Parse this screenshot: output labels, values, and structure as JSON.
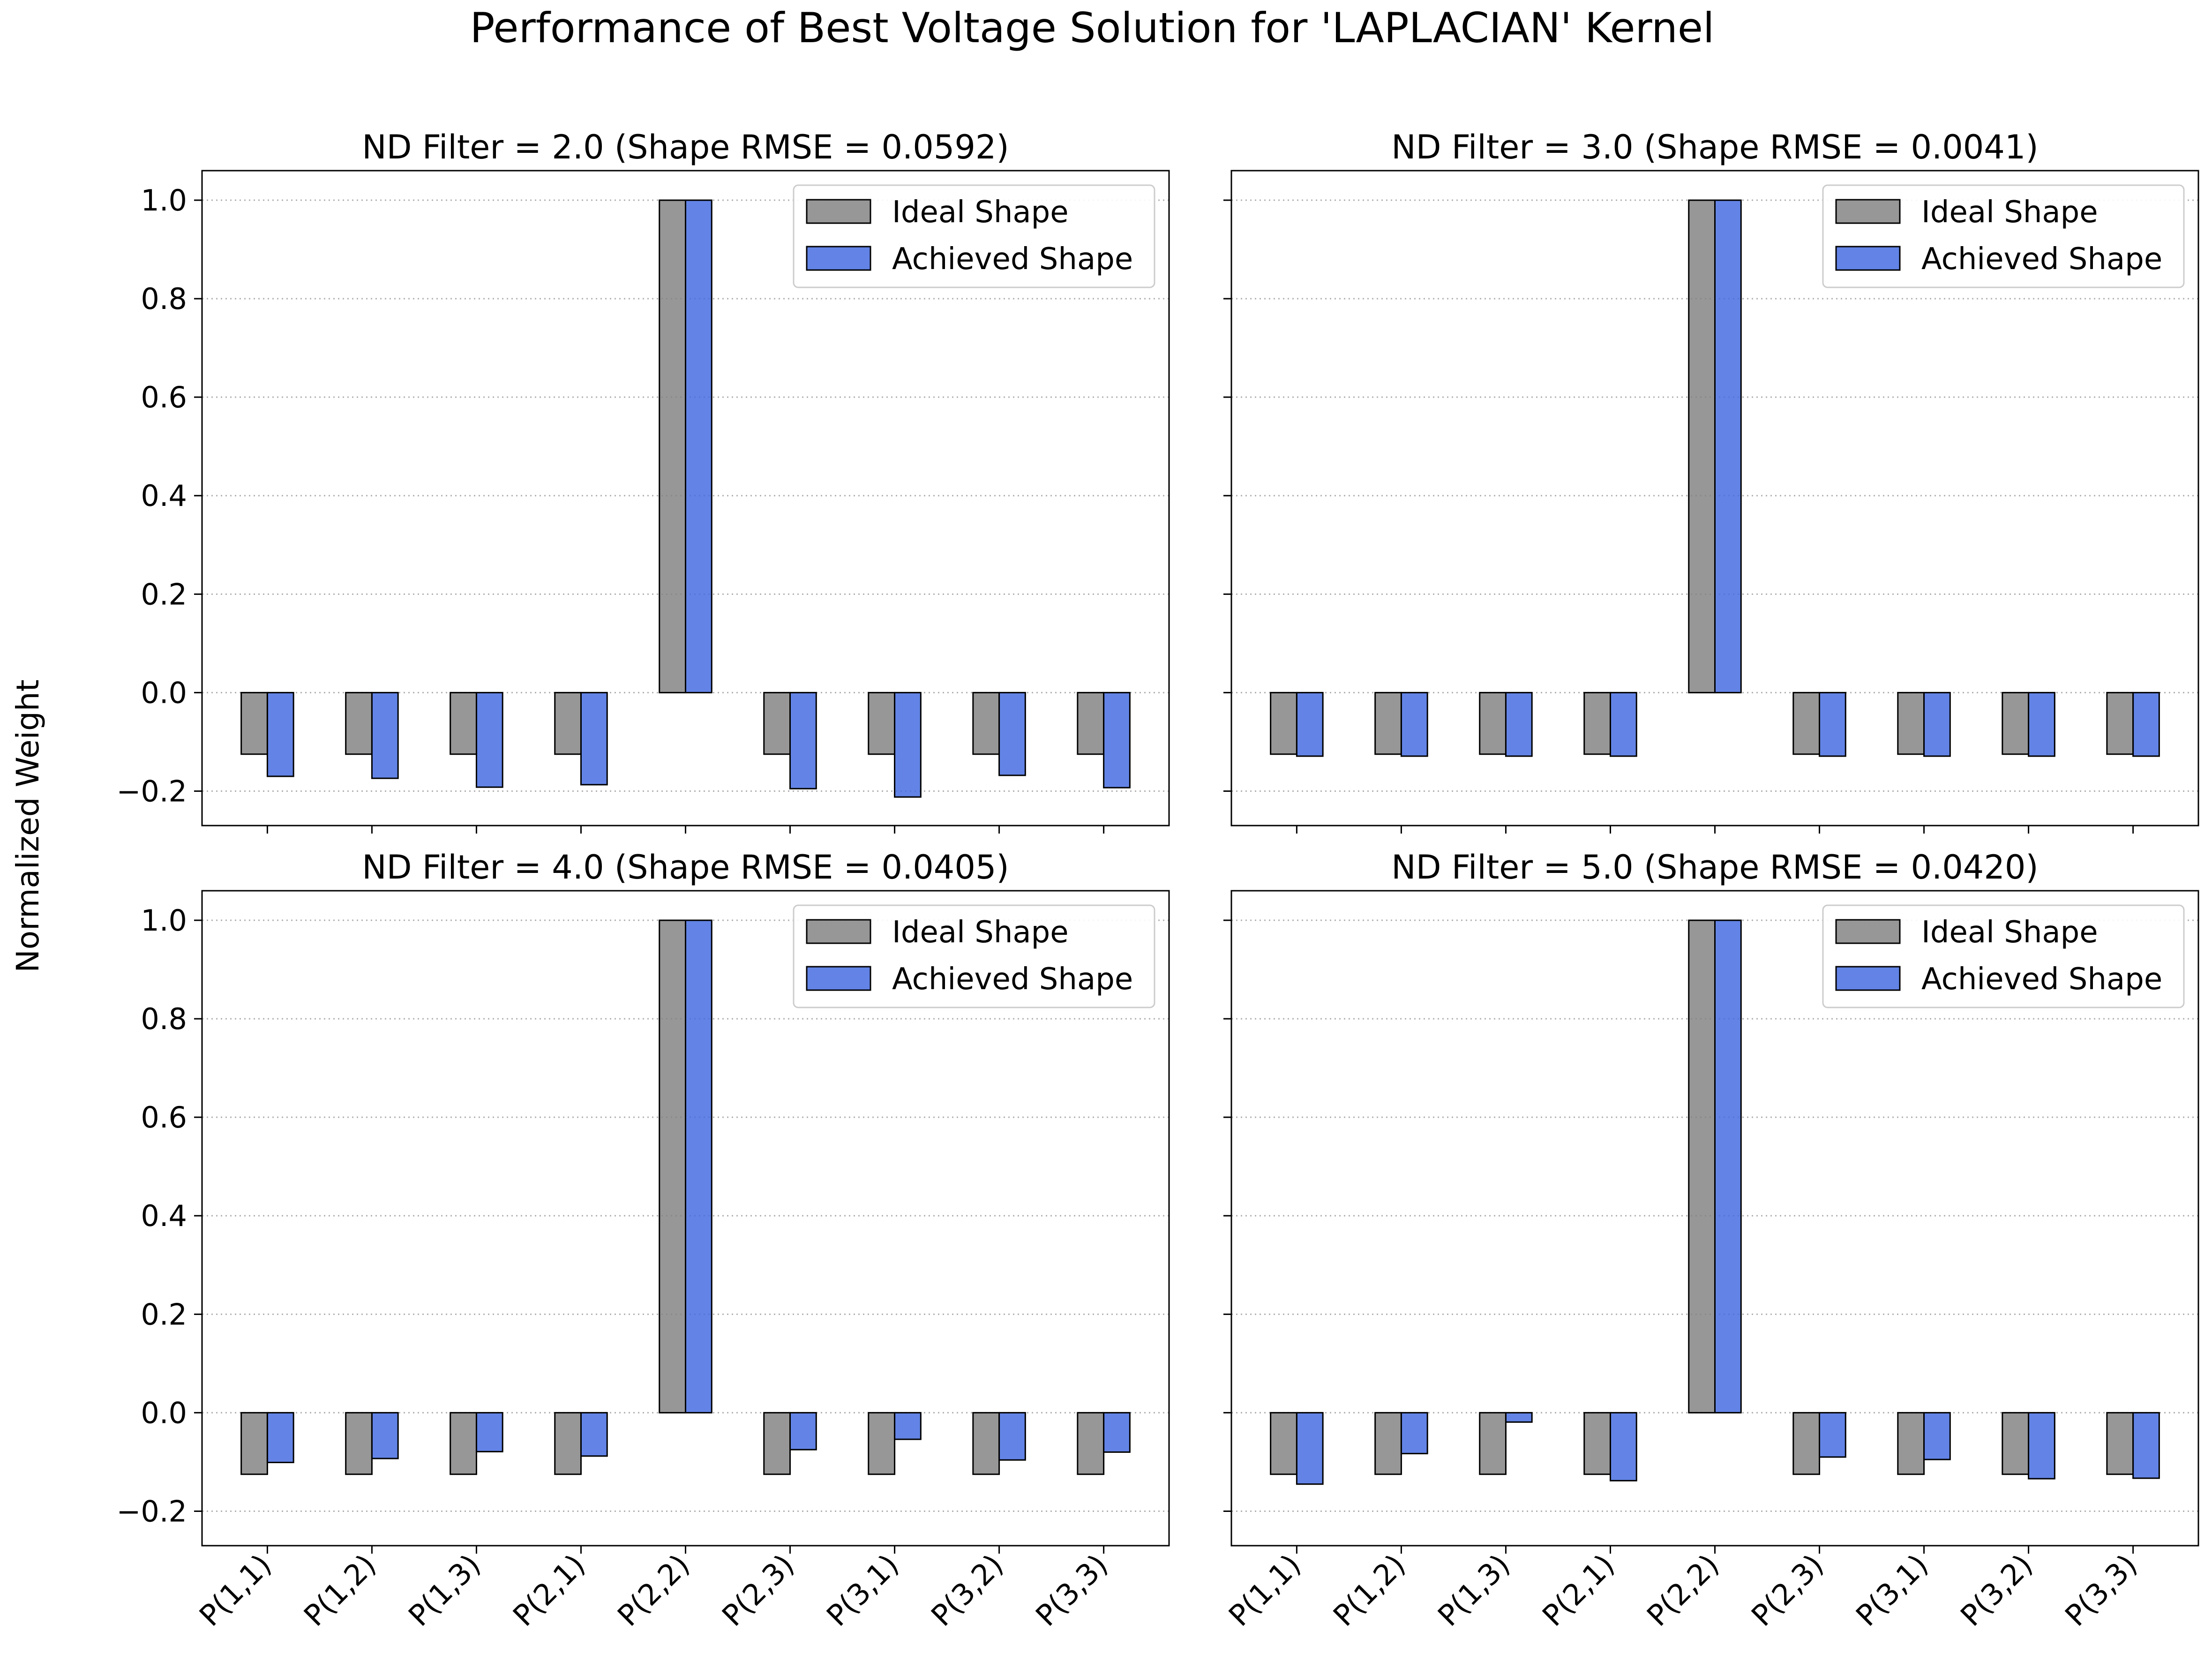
{
  "figure": {
    "title": "Performance of Best Voltage Solution for 'LAPLACIAN' Kernel",
    "ylabel": "Normalized Weight"
  },
  "chart_data": [
    {
      "type": "bar",
      "title": "ND Filter = 2.0 (Shape RMSE = 0.0592)",
      "categories": [
        "P(1,1)",
        "P(1,2)",
        "P(1,3)",
        "P(2,1)",
        "P(2,2)",
        "P(2,3)",
        "P(3,1)",
        "P(3,2)",
        "P(3,3)"
      ],
      "series": [
        {
          "name": "Ideal Shape",
          "color": "#808080",
          "values": [
            -0.125,
            -0.125,
            -0.125,
            -0.125,
            1.0,
            -0.125,
            -0.125,
            -0.125,
            -0.125
          ]
        },
        {
          "name": "Achieved Shape",
          "color": "#4169e1",
          "values": [
            -0.17,
            -0.174,
            -0.192,
            -0.187,
            1.0,
            -0.195,
            -0.212,
            -0.168,
            -0.193
          ]
        }
      ],
      "ylim": [
        -0.27,
        1.06
      ],
      "yticks": [
        "−0.2",
        "0.0",
        "0.2",
        "0.4",
        "0.6",
        "0.8",
        "1.0"
      ],
      "grid": "y",
      "legend": "top-right"
    },
    {
      "type": "bar",
      "title": "ND Filter = 3.0 (Shape RMSE = 0.0041)",
      "categories": [
        "P(1,1)",
        "P(1,2)",
        "P(1,3)",
        "P(2,1)",
        "P(2,2)",
        "P(2,3)",
        "P(3,1)",
        "P(3,2)",
        "P(3,3)"
      ],
      "series": [
        {
          "name": "Ideal Shape",
          "color": "#808080",
          "values": [
            -0.125,
            -0.125,
            -0.125,
            -0.125,
            1.0,
            -0.125,
            -0.125,
            -0.125,
            -0.125
          ]
        },
        {
          "name": "Achieved Shape",
          "color": "#4169e1",
          "values": [
            -0.129,
            -0.129,
            -0.129,
            -0.129,
            1.0,
            -0.129,
            -0.129,
            -0.129,
            -0.129
          ]
        }
      ],
      "ylim": [
        -0.27,
        1.06
      ],
      "yticks": [
        "−0.2",
        "0.0",
        "0.2",
        "0.4",
        "0.6",
        "0.8",
        "1.0"
      ],
      "grid": "y",
      "legend": "top-right"
    },
    {
      "type": "bar",
      "title": "ND Filter = 4.0 (Shape RMSE = 0.0405)",
      "categories": [
        "P(1,1)",
        "P(1,2)",
        "P(1,3)",
        "P(2,1)",
        "P(2,2)",
        "P(2,3)",
        "P(3,1)",
        "P(3,2)",
        "P(3,3)"
      ],
      "series": [
        {
          "name": "Ideal Shape",
          "color": "#808080",
          "values": [
            -0.125,
            -0.125,
            -0.125,
            -0.125,
            1.0,
            -0.125,
            -0.125,
            -0.125,
            -0.125
          ]
        },
        {
          "name": "Achieved Shape",
          "color": "#4169e1",
          "values": [
            -0.101,
            -0.093,
            -0.079,
            -0.088,
            1.0,
            -0.075,
            -0.054,
            -0.096,
            -0.08
          ]
        }
      ],
      "ylim": [
        -0.27,
        1.06
      ],
      "yticks": [
        "−0.2",
        "0.0",
        "0.2",
        "0.4",
        "0.6",
        "0.8",
        "1.0"
      ],
      "grid": "y",
      "legend": "top-right"
    },
    {
      "type": "bar",
      "title": "ND Filter = 5.0 (Shape RMSE = 0.0420)",
      "categories": [
        "P(1,1)",
        "P(1,2)",
        "P(1,3)",
        "P(2,1)",
        "P(2,2)",
        "P(2,3)",
        "P(3,1)",
        "P(3,2)",
        "P(3,3)"
      ],
      "series": [
        {
          "name": "Ideal Shape",
          "color": "#808080",
          "values": [
            -0.125,
            -0.125,
            -0.125,
            -0.125,
            1.0,
            -0.125,
            -0.125,
            -0.125,
            -0.125
          ]
        },
        {
          "name": "Achieved Shape",
          "color": "#4169e1",
          "values": [
            -0.145,
            -0.083,
            -0.019,
            -0.138,
            1.0,
            -0.09,
            -0.095,
            -0.134,
            -0.133
          ]
        }
      ],
      "ylim": [
        -0.27,
        1.06
      ],
      "yticks": [
        "−0.2",
        "0.0",
        "0.2",
        "0.4",
        "0.6",
        "0.8",
        "1.0"
      ],
      "grid": "y",
      "legend": "top-right"
    }
  ]
}
